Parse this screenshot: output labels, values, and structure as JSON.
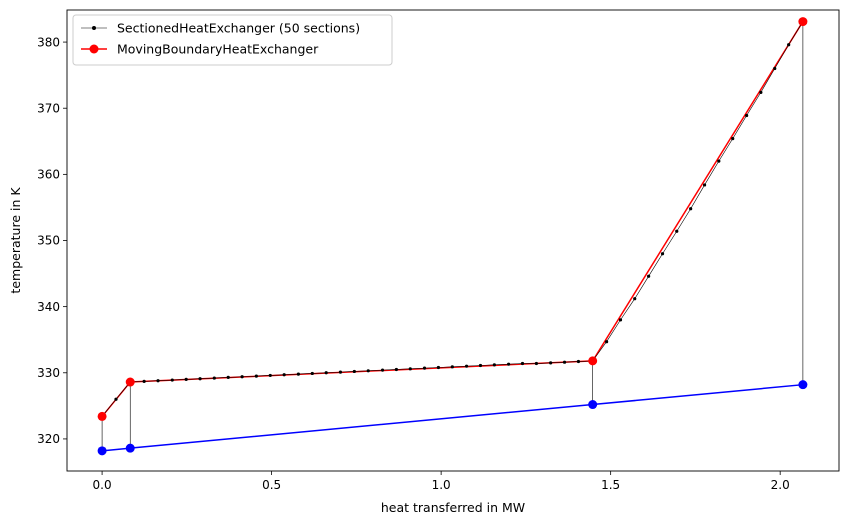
{
  "chart_data": {
    "type": "line",
    "title": "",
    "xlabel": "heat transferred in MW",
    "ylabel": "temperature in K",
    "xlim": [
      -0.1035,
      2.1735
    ],
    "ylim": [
      315.15,
      384.85
    ],
    "xticks": [
      0.0,
      0.5,
      1.0,
      1.5,
      2.0
    ],
    "xtick_labels": [
      "0.0",
      "0.5",
      "1.0",
      "1.5",
      "2.0"
    ],
    "yticks": [
      320,
      330,
      340,
      350,
      360,
      370,
      380
    ],
    "ytick_labels": [
      "320",
      "330",
      "340",
      "350",
      "360",
      "370",
      "380"
    ],
    "grid": false,
    "legend_position": "upper-left",
    "legend": [
      "SectionedHeatExchanger (50 sections)",
      "MovingBoundaryHeatExchanger"
    ],
    "series": [
      {
        "name": "SectionedHeatExchanger (50 sections)",
        "color": "#000000",
        "style": "thin line with small dot markers",
        "x": [
          0.0,
          0.041,
          0.083,
          0.124,
          0.165,
          0.207,
          0.248,
          0.289,
          0.331,
          0.372,
          0.413,
          0.455,
          0.496,
          0.537,
          0.579,
          0.62,
          0.661,
          0.703,
          0.744,
          0.785,
          0.827,
          0.868,
          0.909,
          0.951,
          0.992,
          1.033,
          1.075,
          1.116,
          1.157,
          1.199,
          1.24,
          1.281,
          1.323,
          1.364,
          1.405,
          1.447,
          1.488,
          1.529,
          1.571,
          1.612,
          1.653,
          1.695,
          1.736,
          1.777,
          1.819,
          1.86,
          1.901,
          1.943,
          1.984,
          2.025,
          2.067
        ],
        "y": [
          323.4,
          326.0,
          328.6,
          328.7,
          328.8,
          328.9,
          329.0,
          329.1,
          329.2,
          329.3,
          329.4,
          329.5,
          329.6,
          329.7,
          329.8,
          329.9,
          330.0,
          330.1,
          330.2,
          330.3,
          330.4,
          330.5,
          330.6,
          330.7,
          330.8,
          330.9,
          331.0,
          331.1,
          331.2,
          331.3,
          331.4,
          331.4,
          331.5,
          331.6,
          331.7,
          331.8,
          334.7,
          338.0,
          341.2,
          344.6,
          348.0,
          351.4,
          354.8,
          358.4,
          362.0,
          365.4,
          368.9,
          372.4,
          376.0,
          379.6,
          383.1
        ]
      },
      {
        "name": "MovingBoundaryHeatExchanger",
        "color": "#ff0000",
        "style": "line with large circle markers",
        "x": [
          0.0,
          0.083,
          1.447,
          2.067
        ],
        "y": [
          323.4,
          328.6,
          331.8,
          383.1
        ]
      },
      {
        "name": "",
        "color": "#0000ff",
        "style": "line with large circle markers",
        "x": [
          0.0,
          0.083,
          1.447,
          2.067
        ],
        "y": [
          318.2,
          318.6,
          325.2,
          328.2
        ]
      }
    ],
    "connectors": {
      "color": "#000000",
      "x": [
        0.0,
        0.083,
        1.447,
        2.067
      ],
      "y_top": [
        323.4,
        328.6,
        331.8,
        383.1
      ],
      "y_bottom": [
        318.2,
        318.6,
        325.2,
        328.2
      ]
    }
  }
}
